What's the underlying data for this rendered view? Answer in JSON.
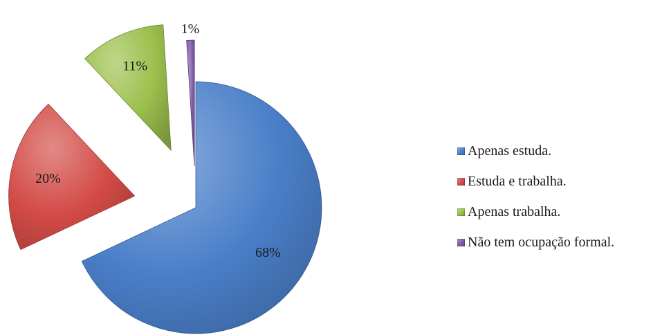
{
  "chart_data": {
    "type": "pie",
    "exploded": true,
    "categories": [
      "Apenas estuda.",
      "Estuda e trabalha.",
      "Apenas trabalha.",
      "Não tem ocupação formal."
    ],
    "values": [
      68,
      20,
      11,
      1
    ],
    "value_labels": [
      "68%",
      "20%",
      "11%",
      "1%"
    ],
    "colors": [
      "#4a7fc9",
      "#d34b46",
      "#9cc04d",
      "#7e5aa6"
    ],
    "legend": {
      "position": "right",
      "entries": [
        "Apenas estuda.",
        "Estuda e trabalha.",
        "Apenas trabalha.",
        "Não tem ocupação formal."
      ]
    },
    "title": ""
  }
}
